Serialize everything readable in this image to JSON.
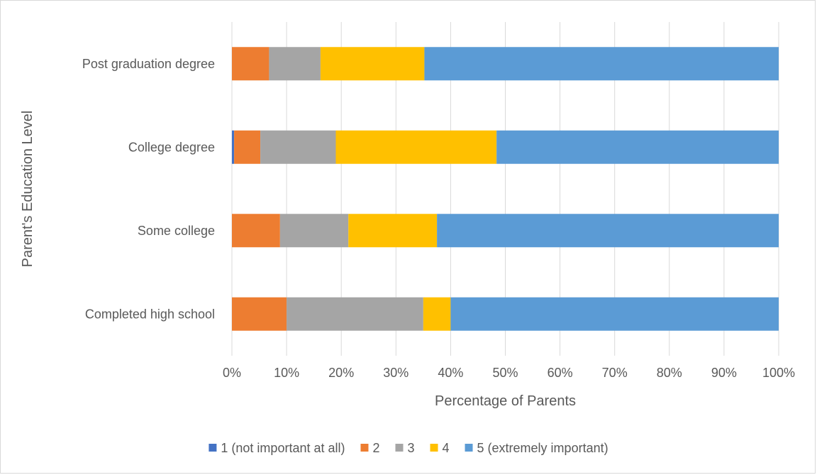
{
  "chart_data": {
    "type": "bar",
    "orientation": "horizontal",
    "stacked": "percent",
    "categories": [
      "Post graduation degree",
      "College degree",
      "Some college",
      "Completed high school"
    ],
    "series": [
      {
        "name": "1 (not important at all)",
        "color": "#4472C4",
        "values": [
          0,
          0.4,
          0,
          0
        ]
      },
      {
        "name": "2",
        "color": "#ED7D31",
        "values": [
          6.8,
          4.8,
          8.8,
          10
        ]
      },
      {
        "name": "3",
        "color": "#A5A5A5",
        "values": [
          9.4,
          13.8,
          12.5,
          25
        ]
      },
      {
        "name": "4",
        "color": "#FFC000",
        "values": [
          19,
          29.4,
          16.2,
          5
        ]
      },
      {
        "name": "5 (extremely important)",
        "color": "#5B9BD5",
        "values": [
          64.8,
          51.6,
          62.5,
          60
        ]
      }
    ],
    "xlabel": "Percentage of Parents",
    "ylabel": "Parent's Education Level",
    "xlim": [
      0,
      100
    ],
    "xticks": [
      "0%",
      "10%",
      "20%",
      "30%",
      "40%",
      "50%",
      "60%",
      "70%",
      "80%",
      "90%",
      "100%"
    ],
    "grid": "vertical",
    "legend_position": "bottom"
  }
}
